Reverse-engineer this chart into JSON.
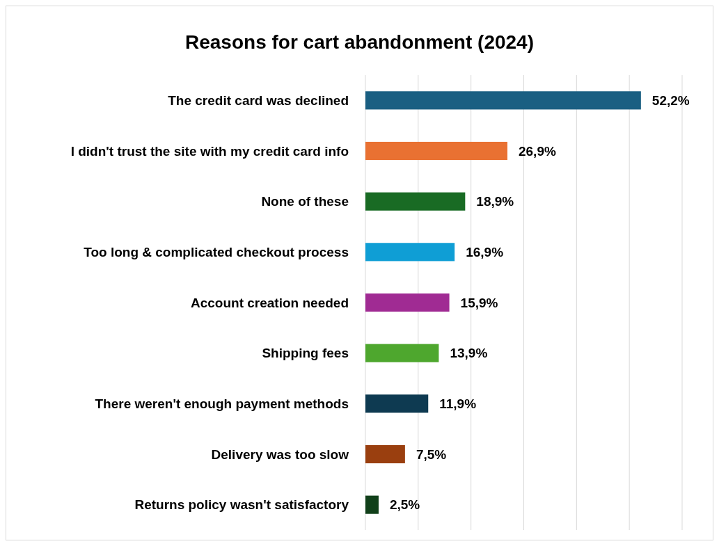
{
  "chart_data": {
    "type": "bar",
    "orientation": "horizontal",
    "title": "Reasons for cart abandonment (2024)",
    "categories": [
      "The credit card was declined",
      "I didn't trust the site with my credit card info",
      "None of these",
      "Too long & complicated checkout process",
      "Account creation needed",
      "Shipping fees",
      "There weren't enough payment methods",
      "Delivery was too slow",
      "Returns policy wasn't satisfactory"
    ],
    "values": [
      52.2,
      26.9,
      18.9,
      16.9,
      15.9,
      13.9,
      11.9,
      7.5,
      2.5
    ],
    "colors": [
      "#1a5f82",
      "#e97132",
      "#196b24",
      "#0f9ed5",
      "#a02b93",
      "#4ea72e",
      "#0e3a51",
      "#9a3f0f",
      "#11401a"
    ],
    "value_labels": [
      "52,2%",
      "26,9%",
      "18,9%",
      "16,9%",
      "15,9%",
      "13,9%",
      "11,9%",
      "7,5%",
      "2,5%"
    ],
    "xlim": [
      0,
      60
    ],
    "xticks": [
      {
        "value": 0,
        "label": null
      },
      {
        "value": 10,
        "label": null
      },
      {
        "value": 20,
        "label": null
      },
      {
        "value": 30,
        "label": null
      },
      {
        "value": 40,
        "label": null
      },
      {
        "value": 50,
        "label": null
      },
      {
        "value": 60,
        "label": null
      }
    ],
    "tick_labels": "y",
    "grid": "x"
  }
}
